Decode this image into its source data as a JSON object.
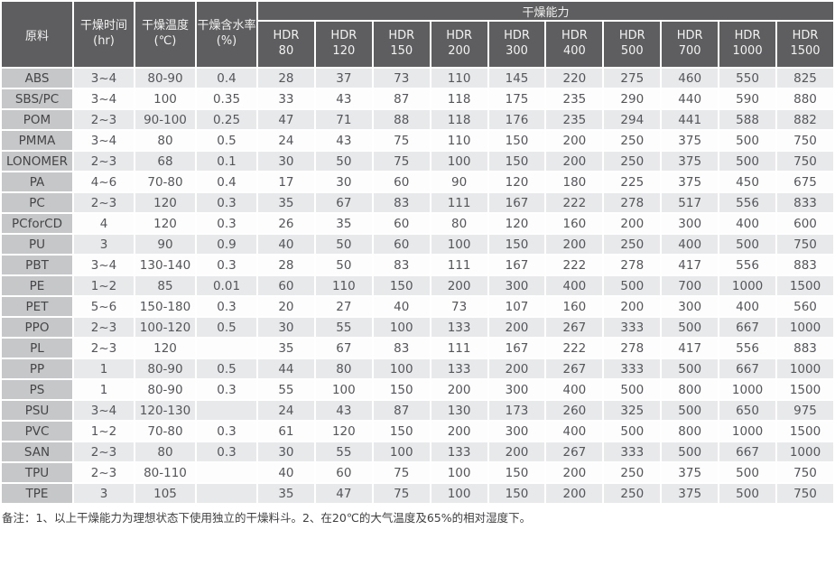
{
  "table": {
    "header": {
      "col_material": "原料",
      "col_time_line1": "干燥时间",
      "col_time_line2": "(hr)",
      "col_temp_line1": "干燥温度",
      "col_temp_line2": "(℃)",
      "col_moisture_line1": "干燥含水率",
      "col_moisture_line2": "(%)",
      "capacity_group": "干燥能力",
      "hdr_columns": [
        {
          "brand": "HDR",
          "model": "80"
        },
        {
          "brand": "HDR",
          "model": "120"
        },
        {
          "brand": "HDR",
          "model": "150"
        },
        {
          "brand": "HDR",
          "model": "200"
        },
        {
          "brand": "HDR",
          "model": "300"
        },
        {
          "brand": "HDR",
          "model": "400"
        },
        {
          "brand": "HDR",
          "model": "500"
        },
        {
          "brand": "HDR",
          "model": "700"
        },
        {
          "brand": "HDR",
          "model": "1000"
        },
        {
          "brand": "HDR",
          "model": "1500"
        }
      ]
    },
    "rows": [
      {
        "material": "ABS",
        "time": "3~4",
        "temp": "80-90",
        "moisture": "0.4",
        "capacities": [
          28,
          37,
          73,
          110,
          145,
          220,
          275,
          460,
          550,
          825
        ]
      },
      {
        "material": "SBS/PC",
        "time": "3~4",
        "temp": "100",
        "moisture": "0.35",
        "capacities": [
          33,
          43,
          87,
          118,
          175,
          235,
          290,
          440,
          590,
          880
        ]
      },
      {
        "material": "POM",
        "time": "2~3",
        "temp": "90-100",
        "moisture": "0.25",
        "capacities": [
          47,
          71,
          88,
          118,
          176,
          235,
          294,
          441,
          588,
          882
        ]
      },
      {
        "material": "PMMA",
        "time": "3~4",
        "temp": "80",
        "moisture": "0.5",
        "capacities": [
          24,
          43,
          75,
          110,
          150,
          200,
          250,
          375,
          500,
          750
        ]
      },
      {
        "material": "LONOMER",
        "time": "2~3",
        "temp": "68",
        "moisture": "0.1",
        "capacities": [
          30,
          50,
          75,
          100,
          150,
          200,
          250,
          375,
          500,
          750
        ]
      },
      {
        "material": "PA",
        "time": "4~6",
        "temp": "70-80",
        "moisture": "0.4",
        "capacities": [
          17,
          30,
          60,
          90,
          120,
          180,
          225,
          375,
          450,
          675
        ]
      },
      {
        "material": "PC",
        "time": "2~3",
        "temp": "120",
        "moisture": "0.3",
        "capacities": [
          35,
          67,
          83,
          111,
          167,
          222,
          278,
          517,
          556,
          833
        ]
      },
      {
        "material": "PCforCD",
        "time": "4",
        "temp": "120",
        "moisture": "0.3",
        "capacities": [
          26,
          35,
          60,
          80,
          120,
          160,
          200,
          300,
          400,
          600
        ]
      },
      {
        "material": "PU",
        "time": "3",
        "temp": "90",
        "moisture": "0.9",
        "capacities": [
          40,
          50,
          60,
          100,
          150,
          200,
          250,
          400,
          500,
          750
        ]
      },
      {
        "material": "PBT",
        "time": "3~4",
        "temp": "130-140",
        "moisture": "0.3",
        "capacities": [
          28,
          50,
          83,
          111,
          167,
          222,
          278,
          417,
          556,
          883
        ]
      },
      {
        "material": "PE",
        "time": "1~2",
        "temp": "85",
        "moisture": "0.01",
        "capacities": [
          60,
          110,
          150,
          200,
          300,
          400,
          500,
          700,
          1000,
          1500
        ]
      },
      {
        "material": "PET",
        "time": "5~6",
        "temp": "150-180",
        "moisture": "0.3",
        "capacities": [
          20,
          27,
          40,
          73,
          107,
          160,
          200,
          300,
          400,
          560
        ]
      },
      {
        "material": "PPO",
        "time": "2~3",
        "temp": "100-120",
        "moisture": "0.5",
        "capacities": [
          30,
          55,
          100,
          133,
          200,
          267,
          333,
          500,
          667,
          1000
        ]
      },
      {
        "material": "PL",
        "time": "2~3",
        "temp": "120",
        "moisture": "",
        "capacities": [
          35,
          67,
          83,
          111,
          167,
          222,
          278,
          417,
          556,
          883
        ]
      },
      {
        "material": "PP",
        "time": "1",
        "temp": "80-90",
        "moisture": "0.5",
        "capacities": [
          44,
          80,
          100,
          133,
          200,
          267,
          333,
          500,
          667,
          1000
        ]
      },
      {
        "material": "PS",
        "time": "1",
        "temp": "80-90",
        "moisture": "0.3",
        "capacities": [
          55,
          100,
          150,
          200,
          300,
          400,
          500,
          800,
          1000,
          1500
        ]
      },
      {
        "material": "PSU",
        "time": "3~4",
        "temp": "120-130",
        "moisture": "",
        "capacities": [
          24,
          43,
          87,
          130,
          173,
          260,
          325,
          500,
          650,
          975
        ]
      },
      {
        "material": "PVC",
        "time": "1~2",
        "temp": "70-80",
        "moisture": "0.3",
        "capacities": [
          61,
          120,
          150,
          200,
          300,
          400,
          500,
          800,
          1000,
          1500
        ]
      },
      {
        "material": "SAN",
        "time": "2~3",
        "temp": "80",
        "moisture": "0.3",
        "capacities": [
          30,
          55,
          100,
          133,
          200,
          267,
          333,
          500,
          667,
          1000
        ]
      },
      {
        "material": "TPU",
        "time": "2~3",
        "temp": "80-110",
        "moisture": "",
        "capacities": [
          40,
          60,
          75,
          100,
          150,
          200,
          250,
          375,
          500,
          750
        ]
      },
      {
        "material": "TPE",
        "time": "3",
        "temp": "105",
        "moisture": "",
        "capacities": [
          35,
          47,
          75,
          100,
          150,
          200,
          250,
          375,
          500,
          750
        ]
      }
    ],
    "note": "备注：1、以上干燥能力为理想状态下使用独立的干燥料斗。2、在20℃的大气温度及65%的相对湿度下。"
  },
  "colors": {
    "header_bg": "#5e5e60",
    "material_col_bg": "#c6c7c9",
    "row_odd_bg": "#e7e9ea",
    "row_even_bg": "#fdfdfd",
    "separator": "#ffffff"
  }
}
